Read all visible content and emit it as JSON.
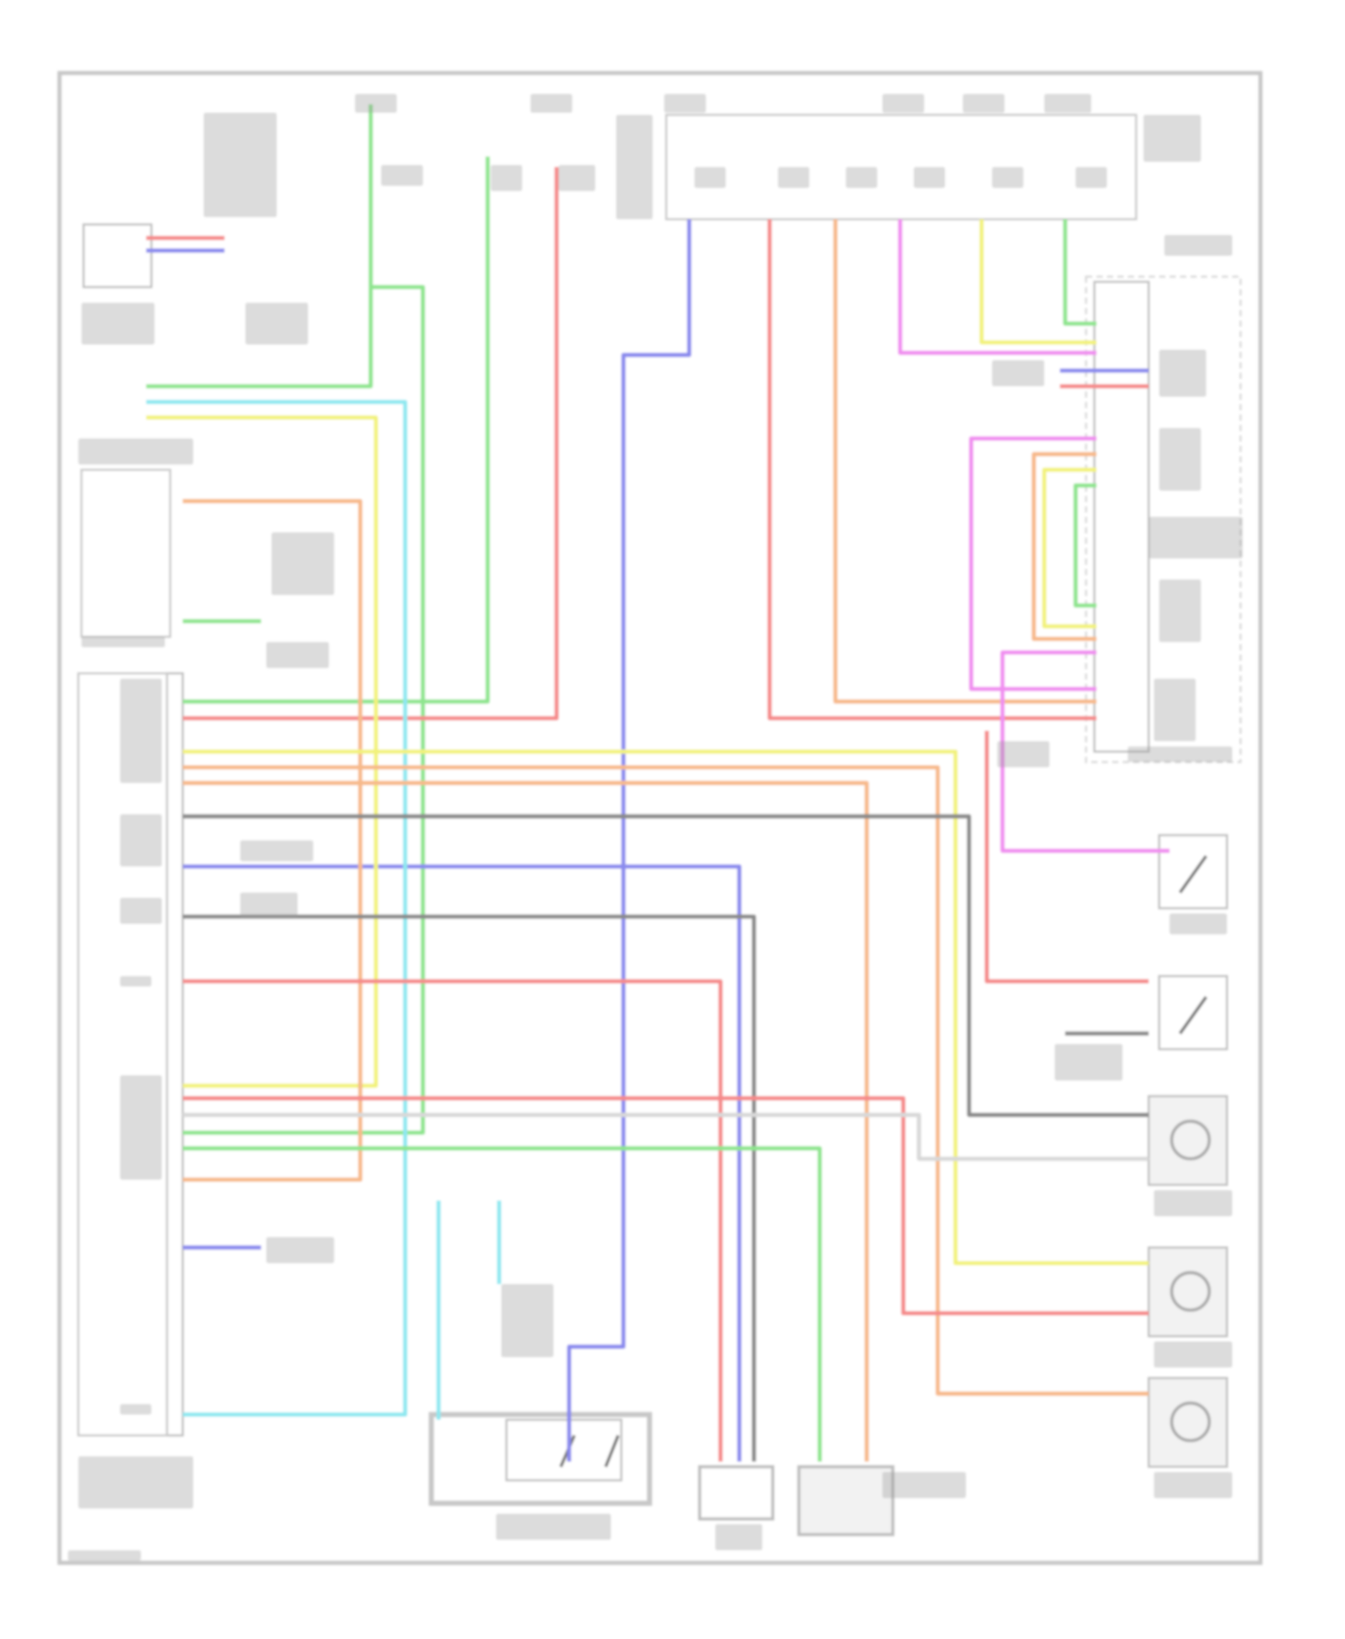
{
  "colors": {
    "frame": "#c8c8c8",
    "component": "#bdbdbd",
    "label": "#9a9a9a",
    "green": "#8ee58e",
    "red": "#f58a8a",
    "blue": "#8a8aee",
    "orange": "#f7b98a",
    "magenta": "#f08ef0",
    "yellow": "#f2f27a",
    "cyan": "#8ee8f0",
    "darkgray": "#8a8a8a",
    "lightgray": "#d8d8d8"
  }
}
